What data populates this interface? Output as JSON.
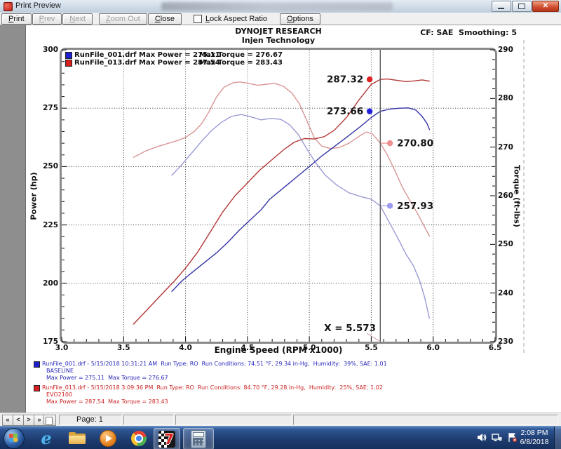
{
  "window": {
    "title": "Print Preview"
  },
  "toolbar": {
    "buttons": [
      {
        "label": "Print",
        "enabled": true
      },
      {
        "label": "Prev",
        "enabled": false
      },
      {
        "label": "Next",
        "enabled": false
      },
      {
        "label": "Zoom Out",
        "enabled": false
      },
      {
        "label": "Close",
        "enabled": true
      }
    ],
    "lock_aspect_ratio_label": "Lock Aspect Ratio",
    "lock_aspect_ratio_checked": false,
    "options_label": "Options"
  },
  "chart": {
    "company": "DYNOJET RESEARCH",
    "facility": "Injen Technology",
    "cf_smoothing": "CF: SAE  Smoothing: 5",
    "legend": [
      {
        "color": "#1f1fd0",
        "file_and_power": "RunFile_001.drf Max Power = 275.11",
        "torque": "Max Torque = 276.67"
      },
      {
        "color": "#d81f1f",
        "file_and_power": "RunFile_013.drf Max Power = 287.54",
        "torque": "Max Torque = 283.43"
      }
    ]
  },
  "chart_data": {
    "type": "line",
    "title": "DYNOJET RESEARCH - Injen Technology",
    "x_axis": {
      "label": "Engine Speed (RPM x1000)",
      "range": [
        3.0,
        6.5
      ],
      "ticks": [
        "3.0",
        "3.5",
        "4.0",
        "4.5",
        "5.0",
        "5.5",
        "6.0",
        "6.5"
      ]
    },
    "y_left": {
      "label": "Power (hp)",
      "range": [
        175,
        300
      ],
      "ticks": [
        300,
        275,
        250,
        225,
        200,
        175
      ]
    },
    "y_right": {
      "label": "Torque (ft-lbs)",
      "range": [
        230,
        290
      ],
      "ticks": [
        290,
        280,
        270,
        260,
        250,
        240,
        230
      ]
    },
    "grid": true,
    "legend_position": "top-left",
    "cursor": {
      "x": 5.573,
      "label": "X = 5.573"
    },
    "series": [
      {
        "id": "torque_013",
        "name": "RunFile_013 Torque",
        "axis": "right",
        "color": "#d89595",
        "points": [
          [
            3.58,
            267.9
          ],
          [
            3.67,
            269.1
          ],
          [
            3.76,
            270.0
          ],
          [
            3.85,
            270.7
          ],
          [
            3.93,
            271.3
          ],
          [
            4.0,
            272.0
          ],
          [
            4.07,
            273.2
          ],
          [
            4.13,
            274.8
          ],
          [
            4.19,
            277.3
          ],
          [
            4.25,
            280.3
          ],
          [
            4.31,
            282.3
          ],
          [
            4.38,
            283.2
          ],
          [
            4.44,
            283.4
          ],
          [
            4.51,
            283.1
          ],
          [
            4.58,
            282.7
          ],
          [
            4.65,
            282.9
          ],
          [
            4.72,
            283.1
          ],
          [
            4.79,
            282.5
          ],
          [
            4.86,
            281.1
          ],
          [
            4.92,
            278.9
          ],
          [
            4.98,
            275.4
          ],
          [
            5.04,
            271.9
          ],
          [
            5.1,
            270.2
          ],
          [
            5.17,
            269.7
          ],
          [
            5.24,
            269.9
          ],
          [
            5.32,
            270.8
          ],
          [
            5.4,
            272.2
          ],
          [
            5.46,
            273.1
          ],
          [
            5.51,
            272.7
          ],
          [
            5.573,
            270.8
          ],
          [
            5.63,
            268.4
          ],
          [
            5.69,
            265.2
          ],
          [
            5.75,
            261.8
          ],
          [
            5.81,
            259.1
          ],
          [
            5.87,
            256.5
          ],
          [
            5.92,
            254.1
          ],
          [
            5.97,
            251.7
          ]
        ]
      },
      {
        "id": "torque_001",
        "name": "RunFile_001 Torque",
        "axis": "right",
        "color": "#9a9ad6",
        "points": [
          [
            3.89,
            264.2
          ],
          [
            3.97,
            266.4
          ],
          [
            4.05,
            268.8
          ],
          [
            4.13,
            271.2
          ],
          [
            4.21,
            273.4
          ],
          [
            4.29,
            275.1
          ],
          [
            4.37,
            276.3
          ],
          [
            4.45,
            276.7
          ],
          [
            4.53,
            276.2
          ],
          [
            4.61,
            275.6
          ],
          [
            4.69,
            275.9
          ],
          [
            4.77,
            275.7
          ],
          [
            4.84,
            274.6
          ],
          [
            4.91,
            272.6
          ],
          [
            4.98,
            269.6
          ],
          [
            5.05,
            266.8
          ],
          [
            5.13,
            264.2
          ],
          [
            5.22,
            262.2
          ],
          [
            5.32,
            260.6
          ],
          [
            5.42,
            259.8
          ],
          [
            5.5,
            259.3
          ],
          [
            5.573,
            257.93
          ],
          [
            5.64,
            254.8
          ],
          [
            5.71,
            251.5
          ],
          [
            5.78,
            248.0
          ],
          [
            5.84,
            245.6
          ],
          [
            5.89,
            242.6
          ],
          [
            5.93,
            239.2
          ],
          [
            5.97,
            234.8
          ]
        ]
      },
      {
        "id": "power_013",
        "name": "RunFile_013 Power",
        "axis": "left",
        "color": "#b33636",
        "points": [
          [
            3.58,
            182.5
          ],
          [
            3.66,
            187.0
          ],
          [
            3.74,
            191.5
          ],
          [
            3.82,
            196.0
          ],
          [
            3.91,
            201.0
          ],
          [
            4.0,
            206.5
          ],
          [
            4.1,
            213.5
          ],
          [
            4.2,
            222.0
          ],
          [
            4.3,
            230.5
          ],
          [
            4.4,
            237.5
          ],
          [
            4.5,
            243.0
          ],
          [
            4.6,
            248.5
          ],
          [
            4.7,
            253.0
          ],
          [
            4.8,
            257.5
          ],
          [
            4.88,
            260.5
          ],
          [
            4.96,
            262.0
          ],
          [
            5.04,
            261.8
          ],
          [
            5.12,
            262.8
          ],
          [
            5.2,
            265.5
          ],
          [
            5.3,
            271.0
          ],
          [
            5.4,
            278.5
          ],
          [
            5.5,
            285.2
          ],
          [
            5.573,
            287.32
          ],
          [
            5.63,
            287.5
          ],
          [
            5.7,
            287.0
          ],
          [
            5.78,
            286.4
          ],
          [
            5.85,
            286.7
          ],
          [
            5.91,
            287.1
          ],
          [
            5.97,
            286.6
          ]
        ]
      },
      {
        "id": "power_001",
        "name": "RunFile_001 Power",
        "axis": "left",
        "color": "#3535a8",
        "points": [
          [
            3.89,
            196.5
          ],
          [
            3.97,
            201.0
          ],
          [
            4.05,
            204.5
          ],
          [
            4.12,
            207.5
          ],
          [
            4.19,
            210.5
          ],
          [
            4.26,
            213.5
          ],
          [
            4.34,
            217.5
          ],
          [
            4.43,
            222.5
          ],
          [
            4.52,
            227.0
          ],
          [
            4.61,
            231.5
          ],
          [
            4.68,
            236.0
          ],
          [
            4.76,
            239.5
          ],
          [
            4.84,
            243.0
          ],
          [
            4.92,
            246.5
          ],
          [
            5.0,
            250.0
          ],
          [
            5.1,
            254.5
          ],
          [
            5.2,
            258.5
          ],
          [
            5.3,
            262.5
          ],
          [
            5.41,
            267.0
          ],
          [
            5.5,
            271.0
          ],
          [
            5.573,
            273.66
          ],
          [
            5.65,
            274.6
          ],
          [
            5.73,
            275.0
          ],
          [
            5.8,
            275.11
          ],
          [
            5.86,
            274.2
          ],
          [
            5.91,
            271.5
          ],
          [
            5.95,
            268.5
          ],
          [
            5.97,
            265.8
          ]
        ]
      }
    ],
    "markers": [
      {
        "label": "287.32",
        "value": 287.32,
        "axis": "left",
        "color": "#e02020",
        "dot_rpm": 5.487,
        "side": "left",
        "connector": false
      },
      {
        "label": "273.66",
        "value": 273.66,
        "axis": "left",
        "color": "#2020dd",
        "dot_rpm": 5.487,
        "side": "left",
        "connector": false
      },
      {
        "label": "270.80",
        "value": 270.8,
        "axis": "right",
        "color": "#ef9090",
        "dot_rpm": 5.651,
        "side": "right",
        "connector": true
      },
      {
        "label": "257.93",
        "value": 257.93,
        "axis": "right",
        "color": "#9a9af0",
        "dot_rpm": 5.651,
        "side": "right",
        "connector": true
      }
    ]
  },
  "run_info": [
    {
      "color": "#2525bb",
      "swatch": "#1f1fd0",
      "lines": [
        "RunFile_001.drf - 5/15/2018 10:31:21 AM  Run Type: RO  Run Conditions: 74.51 °F, 29.34 in-Hg,  Humidity:  39%, SAE: 1.01",
        "BASELINE",
        "Max Power = 275.11  Max Torque = 276.67"
      ]
    },
    {
      "color": "#cc2222",
      "swatch": "#d81f1f",
      "lines": [
        "RunFile_013.drf - 5/15/2018 3:09:36 PM  Run Type: RO  Run Conditions: 84.70 °F, 29.28 in-Hg,  Humidity:  25%, SAE: 1.02",
        "EVO2100",
        "Max Power = 287.54  Max Torque = 283.43"
      ]
    }
  ],
  "status_bar": {
    "nav": [
      "«",
      "<",
      ">",
      "»"
    ],
    "page_label": "Page: 1"
  },
  "taskbar": {
    "apps": [
      "start",
      "internet-explorer",
      "windows-explorer",
      "windows-media-player",
      "chrome",
      "dynojet-winpep",
      "calculator"
    ],
    "clock_time": "2:08 PM",
    "clock_date": "6/8/2018"
  }
}
